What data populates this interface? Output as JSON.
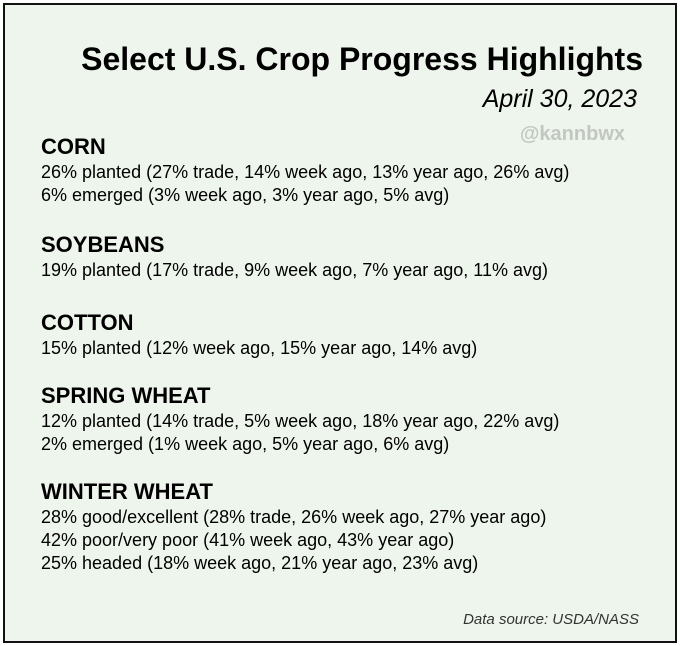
{
  "title": "Select U.S. Crop Progress Highlights",
  "date": "April 30, 2023",
  "handle": "@kannbwx",
  "source": "Data source: USDA/NASS",
  "sections": [
    {
      "heading": "CORN",
      "lines": [
        "26% planted (27% trade, 14% week ago, 13% year ago, 26% avg)",
        "6% emerged (3% week ago, 3% year ago, 5% avg)"
      ]
    },
    {
      "heading": "SOYBEANS",
      "lines": [
        "19% planted (17% trade, 9% week ago, 7% year ago, 11% avg)"
      ]
    },
    {
      "heading": "COTTON",
      "lines": [
        "15% planted (12% week ago, 15% year ago, 14% avg)"
      ]
    },
    {
      "heading": "SPRING WHEAT",
      "lines": [
        "12% planted (14% trade, 5% week ago, 18% year ago, 22% avg)",
        "2% emerged (1% week ago, 5% year ago, 6% avg)"
      ]
    },
    {
      "heading": "WINTER WHEAT",
      "lines": [
        "28% good/excellent (28% trade, 26% week ago, 27% year ago)",
        "42% poor/very poor (41% week ago, 43% year ago)",
        "25% headed (18% week ago, 21% year ago, 23% avg)"
      ]
    }
  ]
}
